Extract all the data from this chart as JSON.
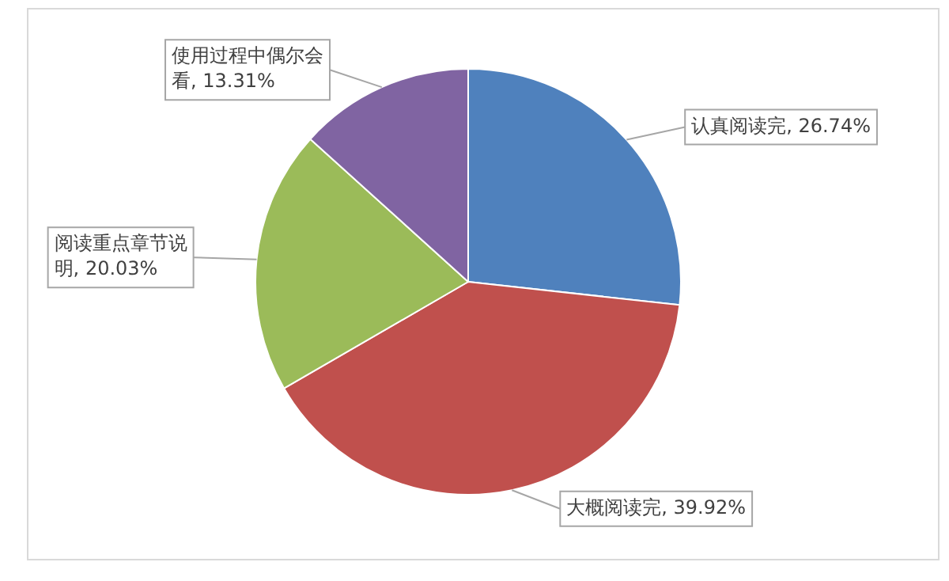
{
  "chart_data": {
    "type": "pie",
    "categories": [
      "认真阅读完",
      "大概阅读完",
      "阅读重点章节说明",
      "使用过程中偶尔会看"
    ],
    "values": [
      26.74,
      39.92,
      20.03,
      13.31
    ],
    "colors": [
      "#4f81bd",
      "#c0504d",
      "#9bbb59",
      "#8064a2"
    ],
    "value_labels": [
      "26.74%",
      "39.92%",
      "20.03%",
      "13.31%"
    ],
    "legend": false
  }
}
